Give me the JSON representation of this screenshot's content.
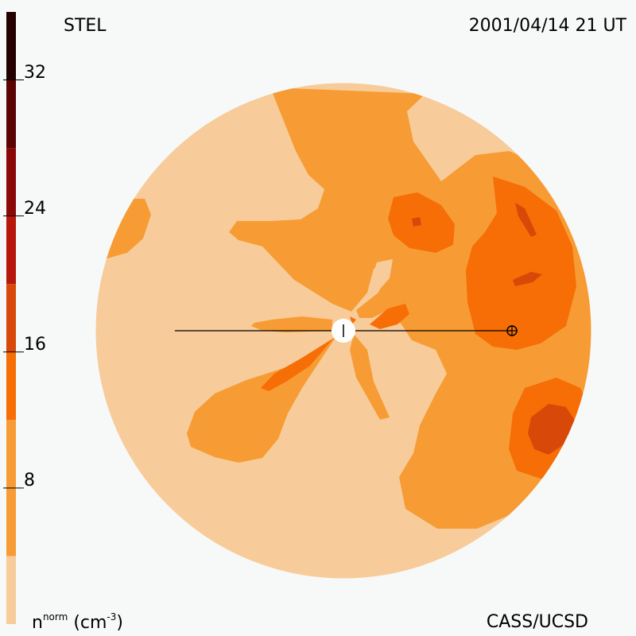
{
  "header": {
    "instrument": "STEL",
    "datetime": "2001/04/14 21 UT"
  },
  "footer": {
    "credit": "CASS/UCSD",
    "unit_main": "n",
    "unit_sup": "norm",
    "unit_rest": "(cm",
    "unit_exp": "-3",
    "unit_close": ")"
  },
  "colorbar": {
    "ticks": [
      "8",
      "16",
      "24",
      "32"
    ],
    "tick_values": [
      8,
      16,
      24,
      32
    ],
    "range": [
      0,
      36
    ],
    "levels": [
      {
        "from": 0,
        "to": 4,
        "color": "#f7cc9a"
      },
      {
        "from": 4,
        "to": 12,
        "color": "#f79c34"
      },
      {
        "from": 12,
        "to": 16,
        "color": "#f66e05"
      },
      {
        "from": 16,
        "to": 20,
        "color": "#d84808"
      },
      {
        "from": 20,
        "to": 24,
        "color": "#b8180c"
      },
      {
        "from": 24,
        "to": 28,
        "color": "#8a0808"
      },
      {
        "from": 28,
        "to": 32,
        "color": "#5a0404"
      },
      {
        "from": 32,
        "to": 36,
        "color": "#240000"
      }
    ]
  },
  "colors": {
    "background": "#f7f9f8",
    "level1": "#f7cc9a",
    "level2": "#f79c34",
    "level3": "#f66e05",
    "level4": "#d84808"
  }
}
